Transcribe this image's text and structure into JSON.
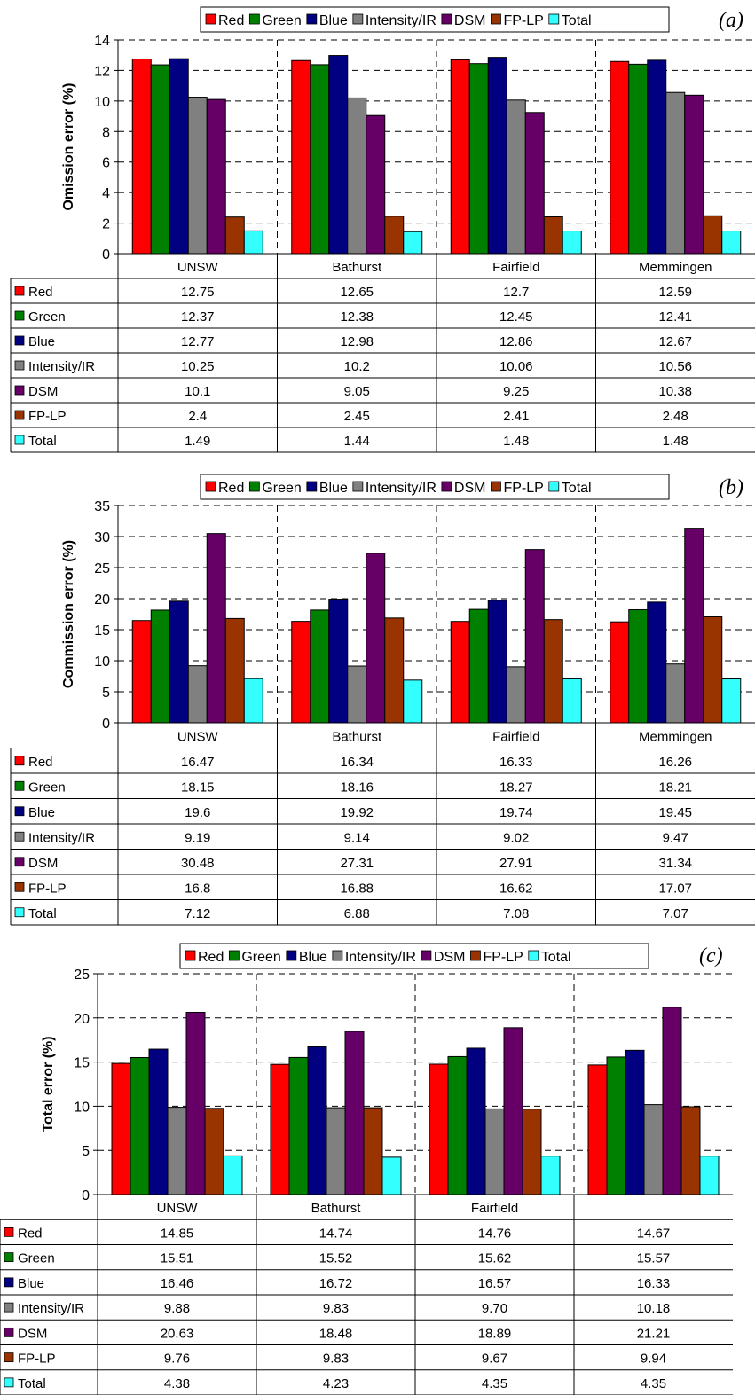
{
  "colors": {
    "Red": "#ff0000",
    "Green": "#008000",
    "Blue": "#000080",
    "Intensity/IR": "#808080",
    "DSM": "#660066",
    "FP-LP": "#993300",
    "Total": "#33ffff"
  },
  "chart_data": [
    {
      "type": "bar",
      "panel_label": "(a)",
      "ylabel": "Omission error (%)",
      "ylim": [
        0,
        14
      ],
      "yticks": [
        0,
        2,
        4,
        6,
        8,
        10,
        12,
        14
      ],
      "grid": true,
      "legend": "top",
      "categories": [
        "UNSW",
        "Bathurst",
        "Fairfield",
        "Memmingen"
      ],
      "series": [
        {
          "name": "Red",
          "values": [
            12.75,
            12.65,
            12.7,
            12.59
          ],
          "labels": [
            "12.75",
            "12.65",
            "12.7",
            "12.59"
          ]
        },
        {
          "name": "Green",
          "values": [
            12.37,
            12.38,
            12.45,
            12.41
          ],
          "labels": [
            "12.37",
            "12.38",
            "12.45",
            "12.41"
          ]
        },
        {
          "name": "Blue",
          "values": [
            12.77,
            12.98,
            12.86,
            12.67
          ],
          "labels": [
            "12.77",
            "12.98",
            "12.86",
            "12.67"
          ]
        },
        {
          "name": "Intensity/IR",
          "values": [
            10.25,
            10.2,
            10.06,
            10.56
          ],
          "labels": [
            "10.25",
            "10.2",
            "10.06",
            "10.56"
          ]
        },
        {
          "name": "DSM",
          "values": [
            10.1,
            9.05,
            9.25,
            10.38
          ],
          "labels": [
            "10.1",
            "9.05",
            "9.25",
            "10.38"
          ]
        },
        {
          "name": "FP-LP",
          "values": [
            2.4,
            2.45,
            2.41,
            2.48
          ],
          "labels": [
            "2.4",
            "2.45",
            "2.41",
            "2.48"
          ]
        },
        {
          "name": "Total",
          "values": [
            1.49,
            1.44,
            1.48,
            1.48
          ],
          "labels": [
            "1.49",
            "1.44",
            "1.48",
            "1.48"
          ]
        }
      ]
    },
    {
      "type": "bar",
      "panel_label": "(b)",
      "ylabel": "Commission error (%)",
      "ylim": [
        0,
        35
      ],
      "yticks": [
        0,
        5,
        10,
        15,
        20,
        25,
        30,
        35
      ],
      "grid": true,
      "legend": "top",
      "categories": [
        "UNSW",
        "Bathurst",
        "Fairfield",
        "Memmingen"
      ],
      "series": [
        {
          "name": "Red",
          "values": [
            16.47,
            16.34,
            16.33,
            16.26
          ],
          "labels": [
            "16.47",
            "16.34",
            "16.33",
            "16.26"
          ]
        },
        {
          "name": "Green",
          "values": [
            18.15,
            18.16,
            18.27,
            18.21
          ],
          "labels": [
            "18.15",
            "18.16",
            "18.27",
            "18.21"
          ]
        },
        {
          "name": "Blue",
          "values": [
            19.6,
            19.92,
            19.74,
            19.45
          ],
          "labels": [
            "19.6",
            "19.92",
            "19.74",
            "19.45"
          ]
        },
        {
          "name": "Intensity/IR",
          "values": [
            9.19,
            9.14,
            9.02,
            9.47
          ],
          "labels": [
            "9.19",
            "9.14",
            "9.02",
            "9.47"
          ]
        },
        {
          "name": "DSM",
          "values": [
            30.48,
            27.31,
            27.91,
            31.34
          ],
          "labels": [
            "30.48",
            "27.31",
            "27.91",
            "31.34"
          ]
        },
        {
          "name": "FP-LP",
          "values": [
            16.8,
            16.88,
            16.62,
            17.07
          ],
          "labels": [
            "16.8",
            "16.88",
            "16.62",
            "17.07"
          ]
        },
        {
          "name": "Total",
          "values": [
            7.12,
            6.88,
            7.08,
            7.07
          ],
          "labels": [
            "7.12",
            "6.88",
            "7.08",
            "7.07"
          ]
        }
      ]
    },
    {
      "type": "bar",
      "panel_label": "(c)",
      "ylabel": "Total error (%)",
      "ylim": [
        0,
        25
      ],
      "yticks": [
        0,
        5,
        10,
        15,
        20,
        25
      ],
      "grid": true,
      "legend": "top",
      "categories": [
        "UNSW",
        "Bathurst",
        "Fairfield",
        ""
      ],
      "series": [
        {
          "name": "Red",
          "values": [
            14.85,
            14.74,
            14.76,
            14.67
          ],
          "labels": [
            "14.85",
            "14.74",
            "14.76",
            "14.67"
          ]
        },
        {
          "name": "Green",
          "values": [
            15.51,
            15.52,
            15.62,
            15.57
          ],
          "labels": [
            "15.51",
            "15.52",
            "15.62",
            "15.57"
          ]
        },
        {
          "name": "Blue",
          "values": [
            16.46,
            16.72,
            16.57,
            16.33
          ],
          "labels": [
            "16.46",
            "16.72",
            "16.57",
            "16.33"
          ]
        },
        {
          "name": "Intensity/IR",
          "values": [
            9.88,
            9.83,
            9.7,
            10.18
          ],
          "labels": [
            "9.88",
            "9.83",
            "9.70",
            "10.18"
          ]
        },
        {
          "name": "DSM",
          "values": [
            20.63,
            18.48,
            18.89,
            21.21
          ],
          "labels": [
            "20.63",
            "18.48",
            "18.89",
            "21.21"
          ]
        },
        {
          "name": "FP-LP",
          "values": [
            9.76,
            9.83,
            9.67,
            9.94
          ],
          "labels": [
            "9.76",
            "9.83",
            "9.67",
            "9.94"
          ]
        },
        {
          "name": "Total",
          "values": [
            4.38,
            4.23,
            4.35,
            4.35
          ],
          "labels": [
            "4.38",
            "4.23",
            "4.35",
            "4.35"
          ]
        }
      ]
    }
  ]
}
